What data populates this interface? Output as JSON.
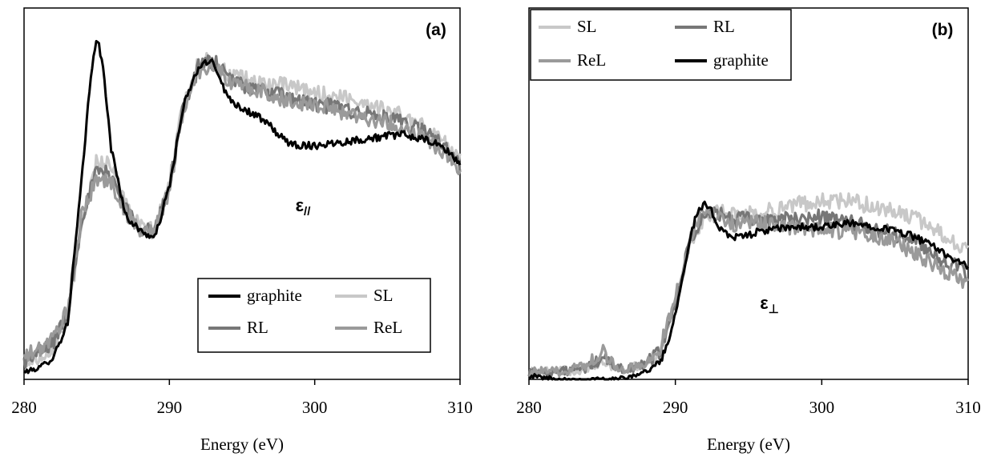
{
  "chart_data": [
    {
      "type": "line",
      "panel_label": "(a)",
      "annotation": "ε//",
      "xlabel": "Energy (eV)",
      "ylabel": "",
      "xlim": [
        280,
        310
      ],
      "ylim": [
        0,
        1
      ],
      "xticks": [
        "280",
        "290",
        "300",
        "310"
      ],
      "grid": false,
      "legend_position": "lower-right",
      "legend": [
        "graphite",
        "SL",
        "RL",
        "ReL"
      ],
      "series": [
        {
          "name": "graphite",
          "color": "#000000",
          "x": [
            280,
            281,
            282,
            283,
            284,
            284.5,
            285,
            285.5,
            286,
            287,
            288,
            289,
            290,
            291,
            292,
            293,
            294,
            295,
            296,
            297,
            298,
            299,
            300,
            302,
            304,
            306,
            308,
            309,
            310
          ],
          "y": [
            0.02,
            0.03,
            0.06,
            0.15,
            0.55,
            0.78,
            0.93,
            0.82,
            0.62,
            0.44,
            0.4,
            0.38,
            0.52,
            0.74,
            0.84,
            0.86,
            0.76,
            0.73,
            0.71,
            0.68,
            0.64,
            0.63,
            0.63,
            0.64,
            0.65,
            0.66,
            0.64,
            0.62,
            0.58
          ]
        },
        {
          "name": "SL",
          "color": "#c8c8c8",
          "x": [
            280,
            281,
            282,
            283,
            284,
            285,
            286,
            287,
            288,
            289,
            290,
            291,
            292,
            293,
            294,
            296,
            298,
            300,
            302,
            304,
            306,
            308,
            310
          ],
          "y": [
            0.04,
            0.06,
            0.09,
            0.17,
            0.42,
            0.59,
            0.58,
            0.47,
            0.41,
            0.4,
            0.53,
            0.75,
            0.85,
            0.87,
            0.82,
            0.8,
            0.79,
            0.77,
            0.76,
            0.74,
            0.71,
            0.67,
            0.6
          ]
        },
        {
          "name": "RL",
          "color": "#777777",
          "x": [
            280,
            281,
            282,
            283,
            284,
            285,
            286,
            287,
            288,
            289,
            290,
            291,
            292,
            293,
            294,
            296,
            298,
            300,
            302,
            304,
            306,
            308,
            310
          ],
          "y": [
            0.05,
            0.07,
            0.1,
            0.18,
            0.44,
            0.56,
            0.55,
            0.46,
            0.41,
            0.4,
            0.52,
            0.74,
            0.84,
            0.86,
            0.81,
            0.78,
            0.76,
            0.74,
            0.73,
            0.71,
            0.69,
            0.66,
            0.58
          ]
        },
        {
          "name": "ReL",
          "color": "#9a9a9a",
          "x": [
            280,
            281,
            282,
            283,
            284,
            285,
            286,
            287,
            288,
            289,
            290,
            291,
            292,
            293,
            294,
            296,
            298,
            300,
            302,
            304,
            306,
            308,
            310
          ],
          "y": [
            0.06,
            0.08,
            0.11,
            0.19,
            0.45,
            0.54,
            0.53,
            0.45,
            0.4,
            0.4,
            0.51,
            0.73,
            0.83,
            0.85,
            0.8,
            0.78,
            0.75,
            0.74,
            0.72,
            0.7,
            0.68,
            0.64,
            0.57
          ]
        }
      ]
    },
    {
      "type": "line",
      "panel_label": "(b)",
      "annotation": "ε⊥",
      "xlabel": "Energy (eV)",
      "ylabel": "",
      "xlim": [
        280,
        310
      ],
      "ylim": [
        0,
        1
      ],
      "xticks": [
        "280",
        "290",
        "300",
        "310"
      ],
      "grid": false,
      "legend_position": "top-left",
      "legend": [
        "SL",
        "RL",
        "ReL",
        "graphite"
      ],
      "series": [
        {
          "name": "graphite",
          "color": "#000000",
          "x": [
            280,
            282,
            284,
            286,
            287,
            288,
            289,
            289.5,
            290,
            290.5,
            291,
            291.5,
            292,
            292.5,
            293,
            294,
            295,
            296,
            298,
            300,
            302,
            304,
            306,
            308,
            310
          ],
          "y": [
            0.01,
            0.0,
            0.0,
            0.0,
            0.01,
            0.02,
            0.05,
            0.1,
            0.18,
            0.28,
            0.38,
            0.45,
            0.47,
            0.45,
            0.41,
            0.38,
            0.39,
            0.4,
            0.41,
            0.41,
            0.42,
            0.41,
            0.39,
            0.35,
            0.3
          ]
        },
        {
          "name": "SL",
          "color": "#c8c8c8",
          "x": [
            280,
            282,
            284,
            285,
            286,
            287,
            288,
            289,
            290,
            291,
            292,
            293,
            294,
            296,
            298,
            300,
            302,
            304,
            306,
            308,
            310
          ],
          "y": [
            0.02,
            0.02,
            0.03,
            0.05,
            0.03,
            0.03,
            0.04,
            0.08,
            0.2,
            0.36,
            0.44,
            0.45,
            0.44,
            0.45,
            0.47,
            0.48,
            0.48,
            0.46,
            0.44,
            0.4,
            0.34
          ]
        },
        {
          "name": "RL",
          "color": "#777777",
          "x": [
            280,
            282,
            284,
            285,
            286,
            287,
            288,
            289,
            290,
            291,
            292,
            293,
            294,
            296,
            298,
            300,
            302,
            304,
            306,
            308,
            310
          ],
          "y": [
            0.02,
            0.02,
            0.03,
            0.06,
            0.03,
            0.03,
            0.04,
            0.08,
            0.2,
            0.37,
            0.44,
            0.45,
            0.43,
            0.43,
            0.43,
            0.44,
            0.42,
            0.4,
            0.38,
            0.33,
            0.28
          ]
        },
        {
          "name": "ReL",
          "color": "#9a9a9a",
          "x": [
            280,
            282,
            284,
            285,
            286,
            287,
            288,
            289,
            290,
            291,
            292,
            293,
            294,
            296,
            298,
            300,
            302,
            304,
            306,
            308,
            310
          ],
          "y": [
            0.02,
            0.02,
            0.04,
            0.08,
            0.03,
            0.03,
            0.04,
            0.09,
            0.22,
            0.38,
            0.46,
            0.43,
            0.42,
            0.42,
            0.41,
            0.4,
            0.4,
            0.38,
            0.35,
            0.3,
            0.26
          ]
        }
      ]
    }
  ]
}
